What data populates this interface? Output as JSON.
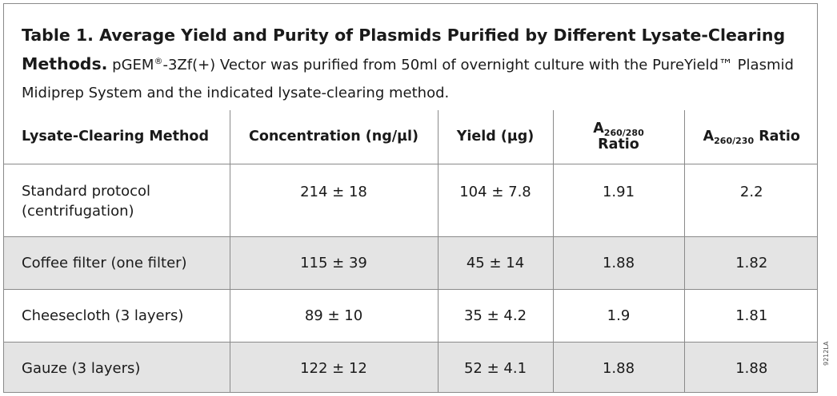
{
  "caption": {
    "title": "Table 1. Average Yield and Purity of Plasmids Purified by Different Lysate-Clearing Methods.",
    "body_before_sup": " pGEM",
    "sup": "®",
    "body_after_sup": "-3Zf(+) Vector was purified from 50ml of overnight culture with the PureYield™ Plasmid Midiprep System and the indicated lysate-clearing method."
  },
  "table": {
    "headers": {
      "method": "Lysate-Clearing Method",
      "concentration": "Concentration (ng/µl)",
      "yield": "Yield (µg)",
      "a260_280_main": "A",
      "a260_280_sub": "260/280",
      "a260_280_suffix": " Ratio",
      "a260_230_main": "A",
      "a260_230_sub": "260/230",
      "a260_230_suffix": " Ratio"
    },
    "rows": [
      {
        "method_line1": "Standard protocol",
        "method_line2": "(centrifugation)",
        "concentration": "214 ± 18",
        "yield": "104 ± 7.8",
        "a260_280": "1.91",
        "a260_230": "2.2"
      },
      {
        "method": "Coffee filter (one filter)",
        "concentration": "115 ± 39",
        "yield": "45 ± 14",
        "a260_280": "1.88",
        "a260_230": "1.82"
      },
      {
        "method": "Cheesecloth (3 layers)",
        "concentration": "89 ± 10",
        "yield": "35 ± 4.2",
        "a260_280": "1.9",
        "a260_230": "1.81"
      },
      {
        "method": "Gauze (3 layers)",
        "concentration": "122 ± 12",
        "yield": "52 ± 4.1",
        "a260_280": "1.88",
        "a260_230": "1.88"
      }
    ]
  },
  "figure_id": "9212LA",
  "colors": {
    "border": "#8a8a8a",
    "shaded_row": "#e4e4e4",
    "text": "#1a1a1a"
  }
}
